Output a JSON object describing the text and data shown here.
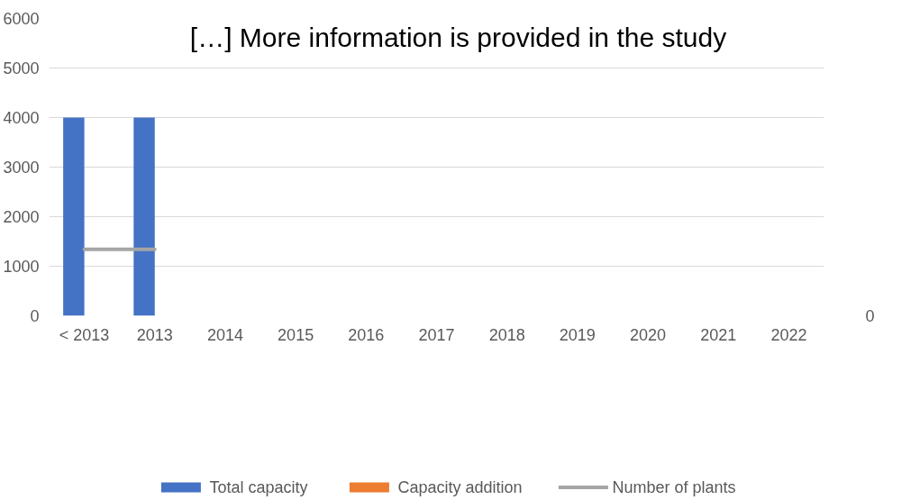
{
  "chart_data": {
    "type": "bar",
    "categories": [
      "< 2013",
      "2013",
      "2014",
      "2015",
      "2016",
      "2017",
      "2018",
      "2019",
      "2020",
      "2021",
      "2022"
    ],
    "series": [
      {
        "name": "Total capacity",
        "color": "#4472c4",
        "values": [
          4000,
          4000,
          null,
          null,
          null,
          null,
          null,
          null,
          null,
          null,
          null
        ]
      },
      {
        "name": "Capacity addition",
        "color": "#ed7d31",
        "values": [
          null,
          null,
          null,
          null,
          null,
          null,
          null,
          null,
          null,
          null,
          null
        ]
      },
      {
        "name": "Number of plants",
        "type": "line",
        "color": "#a5a5a5",
        "values": [
          1340,
          1340,
          null,
          null,
          null,
          null,
          null,
          null,
          null,
          null,
          null
        ]
      }
    ],
    "ylim": [
      0,
      6000
    ],
    "yticks": [
      0,
      1000,
      2000,
      3000,
      4000,
      5000,
      6000
    ],
    "grid": "y",
    "legend": "bottom",
    "annotations": [
      "[…] More information is provided in the study",
      "0"
    ]
  }
}
